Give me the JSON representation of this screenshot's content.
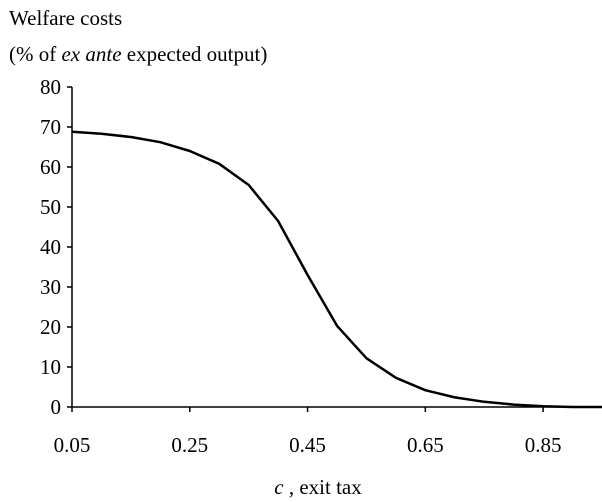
{
  "chart_data": {
    "type": "line",
    "ylabel_line1": "Welfare costs",
    "ylabel_line2_pre": "(% of ",
    "ylabel_line2_italic": "ex ante",
    "ylabel_line2_post": " expected output)",
    "xlabel_italic": "c",
    "xlabel_rest": " , exit tax",
    "ylim": [
      0,
      80
    ],
    "xlim": [
      0.05,
      0.95
    ],
    "y_ticks": [
      0,
      10,
      20,
      30,
      40,
      50,
      60,
      70,
      80
    ],
    "x_tick_labels": [
      "0.05",
      "0.25",
      "0.45",
      "0.65",
      "0.85"
    ],
    "x_tick_values": [
      0.05,
      0.25,
      0.45,
      0.65,
      0.85
    ],
    "series": [
      {
        "x": [
          0.05,
          0.1,
          0.15,
          0.2,
          0.25,
          0.3,
          0.35,
          0.4,
          0.45,
          0.5,
          0.55,
          0.6,
          0.65,
          0.7,
          0.75,
          0.8,
          0.85,
          0.9,
          0.95
        ],
        "values": [
          68.8,
          68.3,
          67.5,
          66.2,
          64.0,
          60.8,
          55.5,
          46.5,
          33.0,
          20.3,
          12.2,
          7.3,
          4.2,
          2.4,
          1.3,
          0.6,
          0.2,
          0.0,
          0.0
        ]
      }
    ],
    "line_color": "#000000",
    "grid": false
  }
}
